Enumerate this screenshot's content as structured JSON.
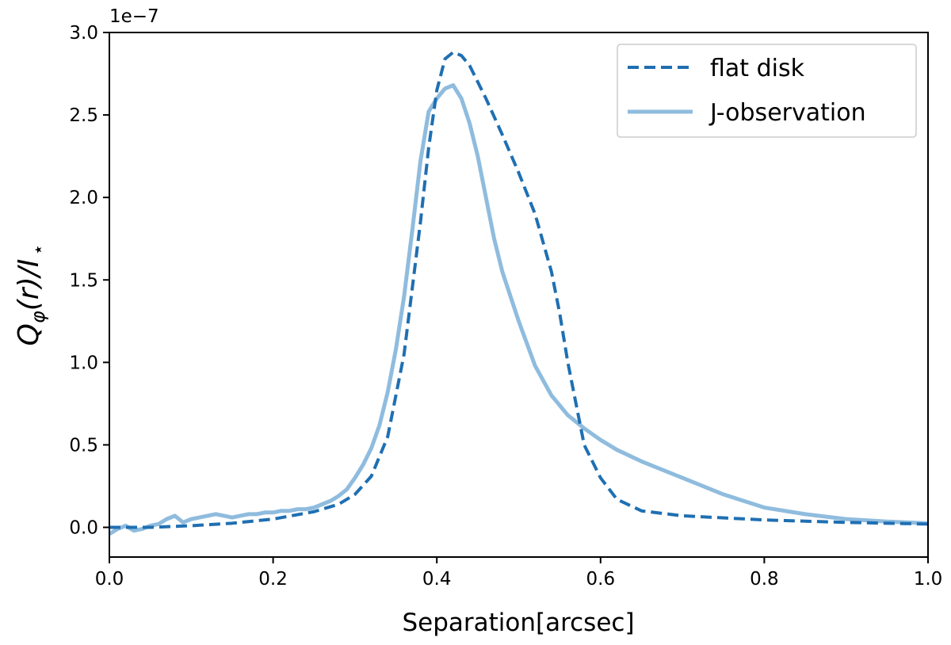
{
  "chart_data": {
    "type": "line",
    "xlabel": "Separation[arcsec]",
    "ylabel": {
      "q": "Q",
      "phi": "φ",
      "mid": "(r)/",
      "i": "I",
      "star": "⋆"
    },
    "y_offset_label": "1e−7",
    "xlim": [
      0.0,
      1.0
    ],
    "ylim": [
      -0.18,
      3.0
    ],
    "xticks": [
      0.0,
      0.2,
      0.4,
      0.6,
      0.8,
      1.0
    ],
    "xtick_labels": [
      "0.0",
      "0.2",
      "0.4",
      "0.6",
      "0.8",
      "1.0"
    ],
    "yticks": [
      0.0,
      0.5,
      1.0,
      1.5,
      2.0,
      2.5,
      3.0
    ],
    "ytick_labels": [
      "0.0",
      "0.5",
      "1.0",
      "1.5",
      "2.0",
      "2.5",
      "3.0"
    ],
    "grid": false,
    "legend_position": "top-right",
    "series": [
      {
        "name": "flat disk",
        "color": "#1f6fb2",
        "style": "dashed",
        "x": [
          0.0,
          0.05,
          0.1,
          0.15,
          0.2,
          0.25,
          0.28,
          0.3,
          0.32,
          0.34,
          0.36,
          0.38,
          0.39,
          0.4,
          0.41,
          0.42,
          0.43,
          0.44,
          0.46,
          0.48,
          0.5,
          0.52,
          0.54,
          0.55,
          0.56,
          0.57,
          0.58,
          0.6,
          0.62,
          0.65,
          0.7,
          0.8,
          0.9,
          1.0
        ],
        "y": [
          0.0,
          0.0,
          0.01,
          0.025,
          0.05,
          0.095,
          0.14,
          0.2,
          0.31,
          0.55,
          1.05,
          1.85,
          2.3,
          2.65,
          2.84,
          2.88,
          2.86,
          2.8,
          2.6,
          2.38,
          2.15,
          1.9,
          1.55,
          1.3,
          1.0,
          0.75,
          0.5,
          0.3,
          0.17,
          0.1,
          0.07,
          0.045,
          0.03,
          0.02
        ]
      },
      {
        "name": "J-observation",
        "color": "#8fbcde",
        "style": "solid",
        "x": [
          0.0,
          0.01,
          0.02,
          0.03,
          0.04,
          0.05,
          0.06,
          0.07,
          0.08,
          0.09,
          0.1,
          0.11,
          0.12,
          0.13,
          0.14,
          0.15,
          0.16,
          0.17,
          0.18,
          0.19,
          0.2,
          0.21,
          0.22,
          0.23,
          0.24,
          0.25,
          0.26,
          0.27,
          0.28,
          0.29,
          0.3,
          0.31,
          0.32,
          0.33,
          0.34,
          0.35,
          0.36,
          0.37,
          0.38,
          0.39,
          0.4,
          0.41,
          0.42,
          0.43,
          0.44,
          0.45,
          0.46,
          0.47,
          0.48,
          0.5,
          0.52,
          0.54,
          0.56,
          0.58,
          0.6,
          0.62,
          0.65,
          0.7,
          0.75,
          0.8,
          0.85,
          0.9,
          0.95,
          1.0
        ],
        "y": [
          -0.04,
          -0.01,
          0.01,
          -0.02,
          -0.01,
          0.01,
          0.02,
          0.05,
          0.07,
          0.03,
          0.05,
          0.06,
          0.07,
          0.08,
          0.07,
          0.06,
          0.07,
          0.08,
          0.08,
          0.09,
          0.09,
          0.1,
          0.1,
          0.11,
          0.11,
          0.12,
          0.14,
          0.16,
          0.19,
          0.23,
          0.3,
          0.38,
          0.48,
          0.62,
          0.82,
          1.08,
          1.4,
          1.8,
          2.22,
          2.52,
          2.6,
          2.66,
          2.68,
          2.6,
          2.45,
          2.25,
          2.0,
          1.75,
          1.55,
          1.25,
          0.98,
          0.8,
          0.68,
          0.6,
          0.53,
          0.47,
          0.4,
          0.3,
          0.2,
          0.12,
          0.08,
          0.05,
          0.035,
          0.025
        ]
      }
    ]
  }
}
